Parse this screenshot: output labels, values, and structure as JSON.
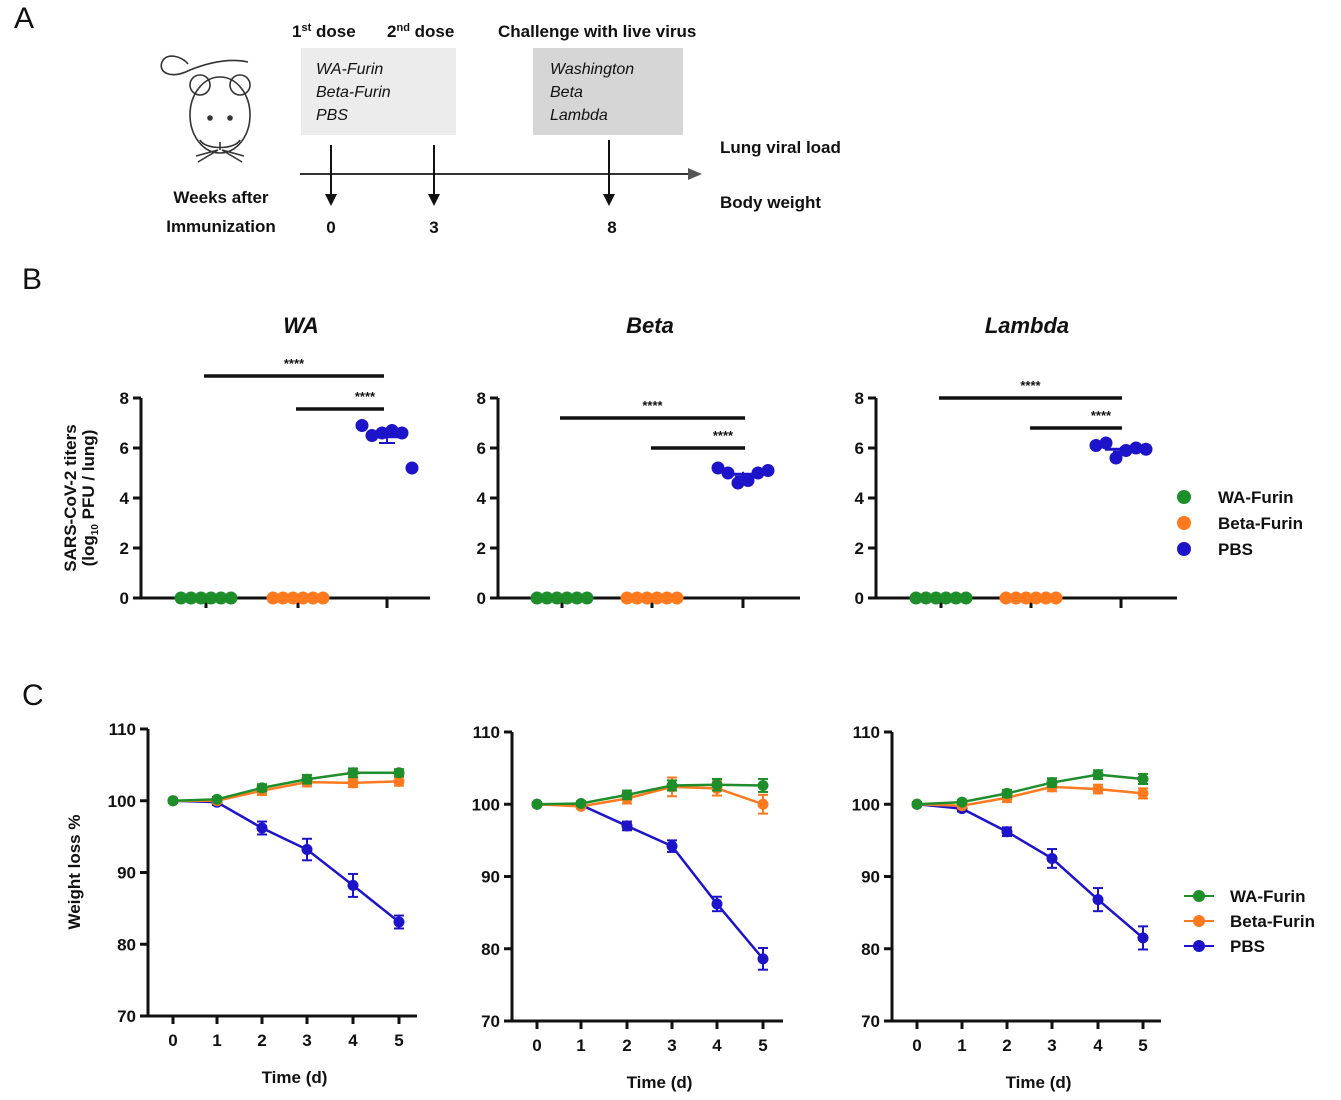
{
  "panel_labels": {
    "a": "A",
    "b": "B",
    "c": "C"
  },
  "timeline": {
    "dose1_label": "1st dose",
    "dose1_main": "1",
    "dose1_sup": "st",
    "dose1_rest": " dose",
    "dose2_main": "2",
    "dose2_sup": "nd",
    "dose2_rest": " dose",
    "challenge_label": "Challenge with live virus",
    "vaccines": [
      "WA-Furin",
      "Beta-Furin",
      "PBS"
    ],
    "viruses": [
      "Washington",
      "Beta",
      "Lambda"
    ],
    "readouts": [
      "Lung viral load",
      "Body weight"
    ],
    "weeks_label_1": "Weeks after",
    "weeks_label_2": "Immunization",
    "weeks": [
      "0",
      "3",
      "8"
    ]
  },
  "colors": {
    "WA-Furin": "#1e8e2b",
    "Beta-Furin": "#ff7a1f",
    "PBS": "#1d14c9",
    "box1": "#ececec",
    "box2": "#d6d6d6"
  },
  "legend": [
    "WA-Furin",
    "Beta-Furin",
    "PBS"
  ],
  "chart_data": [
    {
      "panel": "B",
      "type": "scatter",
      "title": "WA",
      "ylabel_line1": "SARS-CoV-2 titers",
      "ylabel_line2_pre": "(log",
      "ylabel_line2_sub": "10",
      "ylabel_line2_post": " PFU / lung)",
      "categories": [
        "WA-Furin",
        "Beta-Furin",
        "PBS"
      ],
      "ylim": [
        0,
        8
      ],
      "yticks": [
        0,
        2,
        4,
        6,
        8
      ],
      "points": {
        "WA-Furin": [
          0,
          0,
          0,
          0,
          0,
          0
        ],
        "Beta-Furin": [
          0,
          0,
          0,
          0,
          0,
          0
        ],
        "PBS": [
          6.9,
          6.5,
          6.6,
          6.7,
          6.6,
          5.2
        ]
      },
      "mean": {
        "PBS": 6.45
      },
      "sem": {
        "PBS": 0.25
      },
      "significance": [
        {
          "from": "WA-Furin",
          "to": "PBS",
          "text": "****"
        },
        {
          "from": "Beta-Furin",
          "to": "PBS",
          "text": "****"
        }
      ]
    },
    {
      "panel": "B",
      "type": "scatter",
      "title": "Beta",
      "categories": [
        "WA-Furin",
        "Beta-Furin",
        "PBS"
      ],
      "ylim": [
        0,
        8
      ],
      "yticks": [
        0,
        2,
        4,
        6,
        8
      ],
      "points": {
        "WA-Furin": [
          0,
          0,
          0,
          0,
          0,
          0
        ],
        "Beta-Furin": [
          0,
          0,
          0,
          0,
          0,
          0
        ],
        "PBS": [
          5.2,
          5.0,
          4.6,
          4.7,
          5.0,
          5.1
        ]
      },
      "mean": {
        "PBS": 4.95
      },
      "sem": {
        "PBS": 0.1
      },
      "significance": [
        {
          "from": "WA-Furin",
          "to": "PBS",
          "text": "****"
        },
        {
          "from": "Beta-Furin",
          "to": "PBS",
          "text": "****"
        }
      ]
    },
    {
      "panel": "B",
      "type": "scatter",
      "title": "Lambda",
      "categories": [
        "WA-Furin",
        "Beta-Furin",
        "PBS"
      ],
      "ylim": [
        0,
        8
      ],
      "yticks": [
        0,
        2,
        4,
        6,
        8
      ],
      "points": {
        "WA-Furin": [
          0,
          0,
          0,
          0,
          0,
          0
        ],
        "Beta-Furin": [
          0,
          0,
          0,
          0,
          0,
          0
        ],
        "PBS": [
          6.1,
          6.2,
          5.6,
          5.9,
          6.0,
          5.95
        ]
      },
      "mean": {
        "PBS": 5.95
      },
      "sem": {
        "PBS": 0.1
      },
      "significance": [
        {
          "from": "WA-Furin",
          "to": "PBS",
          "text": "****"
        },
        {
          "from": "Beta-Furin",
          "to": "PBS",
          "text": "****"
        }
      ]
    },
    {
      "panel": "C",
      "type": "line",
      "xlabel": "Time (d)",
      "ylabel": "Weight loss %",
      "x": [
        0,
        1,
        2,
        3,
        4,
        5
      ],
      "ylim": [
        70,
        110
      ],
      "yticks": [
        70,
        80,
        90,
        100,
        110
      ],
      "series": [
        {
          "name": "WA-Furin",
          "values": [
            100,
            100.2,
            101.8,
            103,
            103.9,
            103.9
          ],
          "err": [
            0.3,
            0.3,
            0.5,
            0.6,
            0.6,
            0.5
          ]
        },
        {
          "name": "Beta-Furin",
          "values": [
            100,
            100,
            101.4,
            102.6,
            102.5,
            102.7
          ],
          "err": [
            0.3,
            0.3,
            0.6,
            0.6,
            0.6,
            0.6
          ]
        },
        {
          "name": "PBS",
          "values": [
            100,
            99.8,
            96.2,
            93.2,
            88.2,
            83.1
          ],
          "err": [
            0.3,
            0.4,
            0.9,
            1.5,
            1.6,
            0.9
          ]
        }
      ]
    },
    {
      "panel": "C",
      "type": "line",
      "xlabel": "Time (d)",
      "x": [
        0,
        1,
        2,
        3,
        4,
        5
      ],
      "ylim": [
        70,
        110
      ],
      "yticks": [
        70,
        80,
        90,
        100,
        110
      ],
      "series": [
        {
          "name": "WA-Furin",
          "values": [
            100,
            100.1,
            101.3,
            102.6,
            102.7,
            102.6
          ],
          "err": [
            0.3,
            0.3,
            0.6,
            0.7,
            0.8,
            0.9
          ]
        },
        {
          "name": "Beta-Furin",
          "values": [
            100,
            99.7,
            100.8,
            102.4,
            102.2,
            100
          ],
          "err": [
            0.3,
            0.3,
            0.7,
            1.3,
            1.0,
            1.3
          ]
        },
        {
          "name": "PBS",
          "values": [
            100,
            99.9,
            97,
            94.2,
            86.2,
            78.6
          ],
          "err": [
            0.3,
            0.3,
            0.6,
            0.8,
            1.0,
            1.5
          ]
        }
      ]
    },
    {
      "panel": "C",
      "type": "line",
      "xlabel": "Time (d)",
      "x": [
        0,
        1,
        2,
        3,
        4,
        5
      ],
      "ylim": [
        70,
        110
      ],
      "yticks": [
        70,
        80,
        90,
        100,
        110
      ],
      "series": [
        {
          "name": "WA-Furin",
          "values": [
            100,
            100.3,
            101.5,
            103,
            104.1,
            103.5
          ],
          "err": [
            0.3,
            0.3,
            0.5,
            0.6,
            0.6,
            0.7
          ]
        },
        {
          "name": "Beta-Furin",
          "values": [
            100,
            99.8,
            100.9,
            102.4,
            102.1,
            101.5
          ],
          "err": [
            0.3,
            0.3,
            0.6,
            0.6,
            0.6,
            0.7
          ]
        },
        {
          "name": "PBS",
          "values": [
            100,
            99.4,
            96.2,
            92.5,
            86.8,
            81.5
          ],
          "err": [
            0.3,
            0.4,
            0.6,
            1.3,
            1.6,
            1.6
          ]
        }
      ]
    }
  ]
}
